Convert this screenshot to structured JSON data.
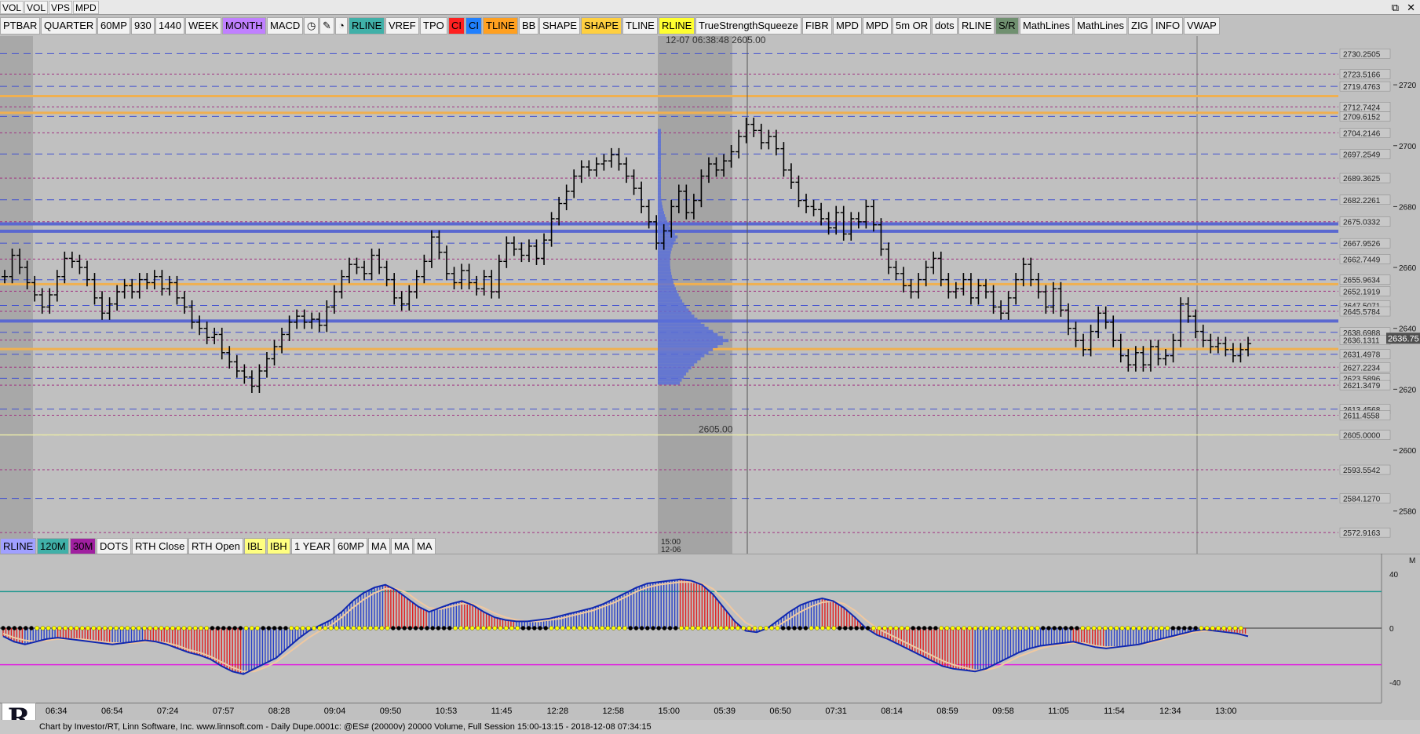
{
  "top_row": [
    "VOL",
    "VOL",
    "VPS",
    "MPD"
  ],
  "window_controls": [
    "⧉",
    "✕"
  ],
  "toolbar": [
    {
      "label": "PTBAR",
      "bg": "#f2f2f2"
    },
    {
      "label": "QUARTER",
      "bg": "#f2f2f2"
    },
    {
      "label": "60MP",
      "bg": "#f2f2f2"
    },
    {
      "label": "930",
      "bg": "#f2f2f2"
    },
    {
      "label": "1440",
      "bg": "#f2f2f2"
    },
    {
      "label": "WEEK",
      "bg": "#f2f2f2"
    },
    {
      "label": "MONTH",
      "bg": "#c080ff"
    },
    {
      "label": "MACD",
      "bg": "#f2f2f2"
    },
    {
      "label": "◷",
      "bg": "#f2f2f2",
      "icon": "clock-icon"
    },
    {
      "label": "✎",
      "bg": "#f2f2f2",
      "icon": "pencil-icon"
    },
    {
      "label": "◔",
      "bg": "#f2f2f2",
      "icon": "timer-icon"
    },
    {
      "label": "RLINE",
      "bg": "#40b0a8"
    },
    {
      "label": "VREF",
      "bg": "#f2f2f2"
    },
    {
      "label": "TPO",
      "bg": "#f2f2f2"
    },
    {
      "label": "CI",
      "bg": "#ff2020"
    },
    {
      "label": "CI",
      "bg": "#2080ff"
    },
    {
      "label": "TLINE",
      "bg": "#ffa020"
    },
    {
      "label": "BB",
      "bg": "#f2f2f2"
    },
    {
      "label": "SHAPE",
      "bg": "#f2f2f2"
    },
    {
      "label": "SHAPE",
      "bg": "#ffd040"
    },
    {
      "label": "TLINE",
      "bg": "#f2f2f2"
    },
    {
      "label": "RLINE",
      "bg": "#ffff30"
    },
    {
      "label": "TrueStrengthSqueeze",
      "bg": "#f2f2f2"
    },
    {
      "label": "FIBR",
      "bg": "#f2f2f2"
    },
    {
      "label": "MPD",
      "bg": "#f2f2f2"
    },
    {
      "label": "MPD",
      "bg": "#f2f2f2"
    },
    {
      "label": "5m OR",
      "bg": "#f2f2f2"
    },
    {
      "label": "dots",
      "bg": "#f2f2f2"
    },
    {
      "label": "RLINE",
      "bg": "#f2f2f2"
    },
    {
      "label": "S/R",
      "bg": "#709070"
    },
    {
      "label": "MathLines",
      "bg": "#f2f2f2"
    },
    {
      "label": "MathLines",
      "bg": "#f2f2f2"
    },
    {
      "label": "ZIG",
      "bg": "#f2f2f2"
    },
    {
      "label": "INFO",
      "bg": "#f2f2f2"
    },
    {
      "label": "VWAP",
      "bg": "#f2f2f2"
    }
  ],
  "bottom_toolbar": [
    {
      "label": "RLINE",
      "bg": "#a0a0ff"
    },
    {
      "label": "120M",
      "bg": "#40b0a8"
    },
    {
      "label": "30M",
      "bg": "#a020a0"
    },
    {
      "label": "DOTS",
      "bg": "#f2f2f2"
    },
    {
      "label": "RTH Close",
      "bg": "#f2f2f2"
    },
    {
      "label": "RTH Open",
      "bg": "#f2f2f2"
    },
    {
      "label": "IBL",
      "bg": "#ffff80"
    },
    {
      "label": "IBH",
      "bg": "#ffff80"
    },
    {
      "label": "1 YEAR",
      "bg": "#f2f2f2"
    },
    {
      "label": "60MP",
      "bg": "#f2f2f2"
    },
    {
      "label": "MA",
      "bg": "#f2f2f2"
    },
    {
      "label": "MA",
      "bg": "#f2f2f2"
    },
    {
      "label": "MA",
      "bg": "#f2f2f2"
    }
  ],
  "crosshair_readout": "12-07 06:38:48  2605.00",
  "crosshair_price_label": "2605.00",
  "last_price": "2636.75",
  "session_label": [
    "15:00",
    "12-06"
  ],
  "macd_pane_label": "M",
  "footer": "Chart by Investor/RT, Linn Software, Inc. www.linnsoft.com - Daily Dupe.0001c: @ES# (20000v) 20000 Volume, Full Session 15:00-13:15 - 2018-12-08 07:34:15",
  "chart_data": [
    {
      "type": "ohlc",
      "instrument": "@ES#",
      "ylim": [
        2566,
        2736
      ],
      "y_ticks": [
        2580,
        2600,
        2620,
        2640,
        2660,
        2680,
        2700,
        2720
      ],
      "x_tick_labels": [
        "06:34",
        "06:54",
        "07:24",
        "07:57",
        "08:28",
        "09:04",
        "09:50",
        "10:53",
        "11:45",
        "12:28",
        "12:58",
        "15:00",
        "05:39",
        "06:50",
        "07:31",
        "08:14",
        "08:59",
        "09:58",
        "11:05",
        "11:54",
        "12:34",
        "13:00"
      ],
      "level_labels": [
        "2730.2505",
        "2723.5166",
        "2719.4763",
        "2712.7424",
        "2709.6152",
        "2704.2146",
        "2697.2549",
        "2689.3625",
        "2682.2261",
        "2675.0332",
        "2667.9526",
        "2662.7449",
        "2655.9634",
        "2652.1919",
        "2647.5071",
        "2645.5784",
        "2638.6988",
        "2636.1311",
        "2631.4978",
        "2627.2234",
        "2623.5896",
        "2621.3479",
        "2613.4568",
        "2611.4558",
        "2605.0000",
        "2593.5542",
        "2584.1270",
        "2572.9163"
      ],
      "orange_levels": [
        2716.3,
        2710.8,
        2654.5,
        2633.2
      ],
      "blue_levels": [
        2671.9,
        2642.4,
        2674.3
      ],
      "closes": [
        2657,
        2664,
        2660,
        2655,
        2651,
        2647,
        2651,
        2657,
        2663,
        2662,
        2660,
        2656,
        2650,
        2645,
        2648,
        2652,
        2654,
        2652,
        2656,
        2655,
        2657,
        2653,
        2655,
        2650,
        2647,
        2642,
        2640,
        2637,
        2638,
        2632,
        2629,
        2626,
        2624,
        2621,
        2626,
        2630,
        2634,
        2638,
        2642,
        2644,
        2642,
        2643,
        2641,
        2647,
        2652,
        2657,
        2661,
        2660,
        2658,
        2664,
        2660,
        2656,
        2650,
        2648,
        2652,
        2657,
        2662,
        2670,
        2665,
        2658,
        2655,
        2659,
        2655,
        2653,
        2657,
        2652,
        2662,
        2668,
        2666,
        2664,
        2667,
        2663,
        2669,
        2676,
        2681,
        2685,
        2690,
        2693,
        2692,
        2694,
        2695,
        2697,
        2694,
        2690,
        2686,
        2680,
        2675,
        2668,
        2672,
        2680,
        2685,
        2678,
        2682,
        2690,
        2694,
        2692,
        2695,
        2698,
        2703,
        2707,
        2705,
        2701,
        2703,
        2699,
        2692,
        2688,
        2682,
        2680,
        2679,
        2676,
        2673,
        2678,
        2671,
        2676,
        2675,
        2680,
        2674,
        2666,
        2660,
        2658,
        2654,
        2652,
        2656,
        2660,
        2663,
        2656,
        2652,
        2653,
        2656,
        2650,
        2654,
        2652,
        2647,
        2645,
        2650,
        2656,
        2661,
        2656,
        2652,
        2647,
        2653,
        2646,
        2640,
        2636,
        2633,
        2639,
        2645,
        2642,
        2636,
        2631,
        2628,
        2632,
        2628,
        2634,
        2630,
        2631,
        2636,
        2648,
        2644,
        2639,
        2636,
        2634,
        2635,
        2633,
        2631,
        2633,
        2635
      ]
    },
    {
      "type": "macd",
      "ylim": [
        -55,
        55
      ],
      "y_ticks": [
        40,
        0,
        -40
      ],
      "macd": [
        -6,
        -10,
        -12,
        -10,
        -8,
        -7,
        -8,
        -9,
        -10,
        -11,
        -12,
        -11,
        -10,
        -9,
        -10,
        -12,
        -15,
        -18,
        -20,
        -23,
        -28,
        -32,
        -34,
        -30,
        -26,
        -22,
        -15,
        -8,
        -2,
        2,
        6,
        12,
        20,
        26,
        30,
        32,
        28,
        22,
        16,
        12,
        15,
        18,
        20,
        17,
        12,
        8,
        6,
        5,
        5,
        6,
        7,
        9,
        11,
        13,
        15,
        18,
        22,
        26,
        30,
        33,
        34,
        35,
        36,
        35,
        32,
        25,
        15,
        5,
        -2,
        -3,
        0,
        6,
        12,
        17,
        20,
        22,
        20,
        15,
        8,
        0,
        -5,
        -8,
        -12,
        -16,
        -20,
        -24,
        -28,
        -30,
        -31,
        -32,
        -30,
        -26,
        -22,
        -18,
        -15,
        -13,
        -12,
        -11,
        -10,
        -12,
        -14,
        -15,
        -14,
        -13,
        -12,
        -10,
        -8,
        -6,
        -4,
        -2,
        -1,
        -2,
        -3,
        -4,
        -6
      ],
      "signal": [
        -4,
        -7,
        -9,
        -10,
        -9,
        -8,
        -8,
        -8,
        -9,
        -10,
        -11,
        -11,
        -11,
        -10,
        -10,
        -11,
        -13,
        -16,
        -18,
        -21,
        -25,
        -29,
        -32,
        -32,
        -29,
        -25,
        -19,
        -13,
        -7,
        -2,
        2,
        8,
        15,
        21,
        26,
        29,
        29,
        26,
        20,
        15,
        14,
        16,
        18,
        18,
        15,
        11,
        8,
        6,
        5,
        5,
        6,
        7,
        9,
        11,
        13,
        16,
        19,
        23,
        27,
        30,
        32,
        33,
        34,
        34,
        33,
        29,
        21,
        12,
        4,
        0,
        -1,
        2,
        7,
        12,
        16,
        19,
        20,
        18,
        13,
        6,
        0,
        -4,
        -8,
        -12,
        -16,
        -20,
        -24,
        -27,
        -29,
        -31,
        -31,
        -29,
        -25,
        -21,
        -18,
        -15,
        -13,
        -12,
        -11,
        -11,
        -13,
        -14,
        -14,
        -13,
        -12,
        -11,
        -9,
        -7,
        -5,
        -3,
        -2,
        -2,
        -3,
        -4,
        -5
      ],
      "teal_level": 27,
      "magenta_level": -27
    }
  ]
}
